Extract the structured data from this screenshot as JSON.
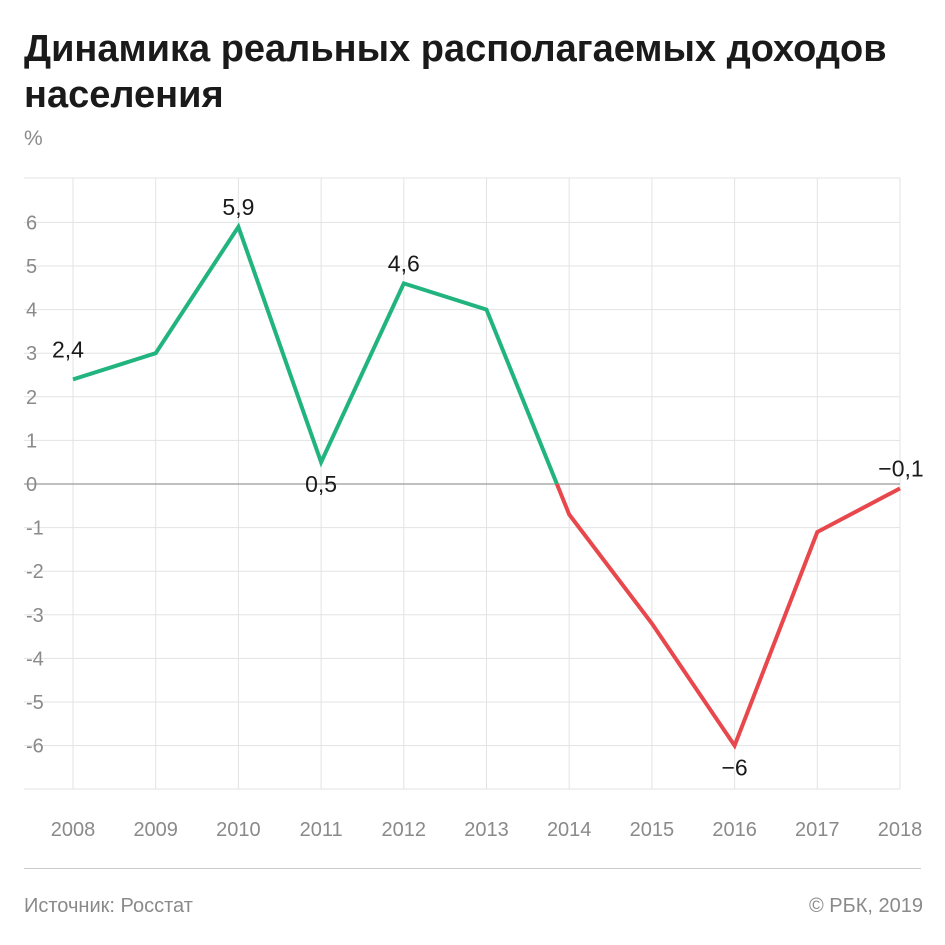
{
  "header": {
    "title": "Динамика реальных располагаемых доходов населения",
    "unit": "%"
  },
  "footer": {
    "source": "Источник: Росстат",
    "copyright": "© РБК, 2019"
  },
  "colors": {
    "positive": "#22b47f",
    "negative": "#e8474c",
    "grid": "#e3e3e3",
    "zero_line": "#9a9a9a",
    "tick_text": "#8a8a8a",
    "label_text": "#1a1a1a"
  },
  "chart_data": {
    "type": "line",
    "title": "Динамика реальных располагаемых доходов населения",
    "ylabel": "%",
    "xlabel": "",
    "x": [
      "2008",
      "2009",
      "2010",
      "2011",
      "2012",
      "2013",
      "2014",
      "2015",
      "2016",
      "2017",
      "2018"
    ],
    "values": [
      2.4,
      3.0,
      5.9,
      0.5,
      4.6,
      4.0,
      -0.7,
      -3.2,
      -6.0,
      -1.1,
      -0.1
    ],
    "ylim": [
      -7,
      7
    ],
    "yticks": [
      {
        "v": 6,
        "label": "6"
      },
      {
        "v": 5,
        "label": "5"
      },
      {
        "v": 4,
        "label": "4"
      },
      {
        "v": 3,
        "label": "3"
      },
      {
        "v": 2,
        "label": "2"
      },
      {
        "v": 1,
        "label": "1"
      },
      {
        "v": 0,
        "label": "0"
      },
      {
        "v": -1,
        "label": "-1"
      },
      {
        "v": -2,
        "label": "-2"
      },
      {
        "v": -3,
        "label": "-3"
      },
      {
        "v": -4,
        "label": "-4"
      },
      {
        "v": -5,
        "label": "-5"
      },
      {
        "v": -6,
        "label": "-6"
      }
    ],
    "annotations": [
      {
        "index": 0,
        "text": "2,4",
        "position": "above"
      },
      {
        "index": 2,
        "text": "5,9",
        "position": "above"
      },
      {
        "index": 3,
        "text": "0,5",
        "position": "below"
      },
      {
        "index": 4,
        "text": "4,6",
        "position": "above"
      },
      {
        "index": 8,
        "text": "−6",
        "position": "below"
      },
      {
        "index": 10,
        "text": "−0,1",
        "position": "above"
      }
    ],
    "grid": true
  }
}
